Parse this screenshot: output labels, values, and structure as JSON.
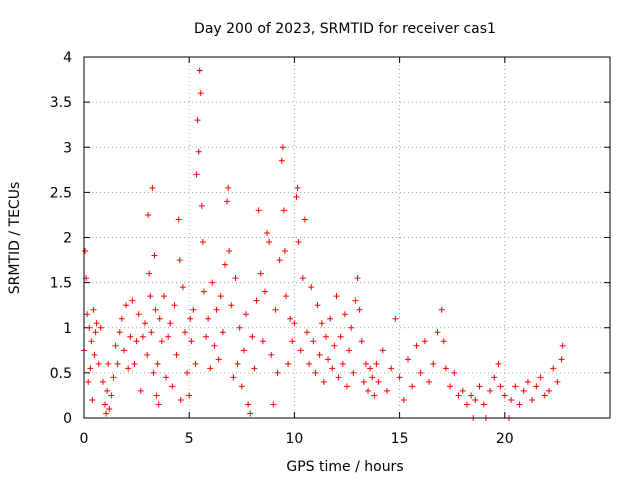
{
  "chart_data": {
    "type": "scatter",
    "title": "Day 200 of 2023, SRMTID for receiver cas1",
    "xlabel": "GPS time / hours",
    "ylabel": "SRMTID / TECUs",
    "xlim": [
      0,
      25
    ],
    "ylim": [
      0,
      4
    ],
    "xticks": [
      0,
      5,
      10,
      15,
      20
    ],
    "xtick_labels": [
      "0",
      "5",
      "10",
      "15",
      "20"
    ],
    "yticks": [
      0,
      0.5,
      1,
      1.5,
      2,
      2.5,
      3,
      3.5,
      4
    ],
    "ytick_labels": [
      "0",
      "0.5",
      "1",
      "1.5",
      "2",
      "2.5",
      "3",
      "3.5",
      "4"
    ],
    "grid": true,
    "marker": "plus",
    "color": "#ff0000",
    "series": [
      {
        "name": "SRMTID",
        "points": [
          [
            0.0,
            0.75
          ],
          [
            0.05,
            1.85
          ],
          [
            0.1,
            1.55
          ],
          [
            0.15,
            1.15
          ],
          [
            0.2,
            0.4
          ],
          [
            0.25,
            1.0
          ],
          [
            0.3,
            0.55
          ],
          [
            0.35,
            0.85
          ],
          [
            0.4,
            0.2
          ],
          [
            0.45,
            1.2
          ],
          [
            0.5,
            0.7
          ],
          [
            0.55,
            0.95
          ],
          [
            0.6,
            1.05
          ],
          [
            0.7,
            0.6
          ],
          [
            0.8,
            1.0
          ],
          [
            0.9,
            0.4
          ],
          [
            1.0,
            0.15
          ],
          [
            1.05,
            0.05
          ],
          [
            1.1,
            0.3
          ],
          [
            1.15,
            0.6
          ],
          [
            1.2,
            0.1
          ],
          [
            1.3,
            0.25
          ],
          [
            1.4,
            0.45
          ],
          [
            1.5,
            0.8
          ],
          [
            1.6,
            0.6
          ],
          [
            1.7,
            0.95
          ],
          [
            1.8,
            1.1
          ],
          [
            1.9,
            0.75
          ],
          [
            2.0,
            1.25
          ],
          [
            2.1,
            0.55
          ],
          [
            2.2,
            0.9
          ],
          [
            2.3,
            1.3
          ],
          [
            2.4,
            0.6
          ],
          [
            2.5,
            0.85
          ],
          [
            2.6,
            1.15
          ],
          [
            2.7,
            0.3
          ],
          [
            2.8,
            0.9
          ],
          [
            2.9,
            1.05
          ],
          [
            3.0,
            0.7
          ],
          [
            3.05,
            2.25
          ],
          [
            3.1,
            1.6
          ],
          [
            3.15,
            1.35
          ],
          [
            3.2,
            0.95
          ],
          [
            3.25,
            2.55
          ],
          [
            3.3,
            0.5
          ],
          [
            3.35,
            1.8
          ],
          [
            3.4,
            1.2
          ],
          [
            3.45,
            0.25
          ],
          [
            3.5,
            0.6
          ],
          [
            3.55,
            0.15
          ],
          [
            3.6,
            1.1
          ],
          [
            3.7,
            0.85
          ],
          [
            3.8,
            1.35
          ],
          [
            3.9,
            0.45
          ],
          [
            4.0,
            0.9
          ],
          [
            4.1,
            1.05
          ],
          [
            4.2,
            0.35
          ],
          [
            4.3,
            1.25
          ],
          [
            4.4,
            0.7
          ],
          [
            4.5,
            2.2
          ],
          [
            4.55,
            1.75
          ],
          [
            4.6,
            0.2
          ],
          [
            4.7,
            1.45
          ],
          [
            4.8,
            0.95
          ],
          [
            4.9,
            0.5
          ],
          [
            5.0,
            0.25
          ],
          [
            5.05,
            1.1
          ],
          [
            5.1,
            0.85
          ],
          [
            5.2,
            1.2
          ],
          [
            5.3,
            0.6
          ],
          [
            5.35,
            2.7
          ],
          [
            5.4,
            3.3
          ],
          [
            5.45,
            2.95
          ],
          [
            5.5,
            3.85
          ],
          [
            5.55,
            3.6
          ],
          [
            5.6,
            2.35
          ],
          [
            5.65,
            1.95
          ],
          [
            5.7,
            1.4
          ],
          [
            5.8,
            0.9
          ],
          [
            5.9,
            1.1
          ],
          [
            6.0,
            0.55
          ],
          [
            6.1,
            1.5
          ],
          [
            6.2,
            0.8
          ],
          [
            6.3,
            1.2
          ],
          [
            6.4,
            0.65
          ],
          [
            6.5,
            1.35
          ],
          [
            6.6,
            0.95
          ],
          [
            6.7,
            1.7
          ],
          [
            6.8,
            2.4
          ],
          [
            6.85,
            2.55
          ],
          [
            6.9,
            1.85
          ],
          [
            7.0,
            1.25
          ],
          [
            7.1,
            0.45
          ],
          [
            7.2,
            1.55
          ],
          [
            7.3,
            0.6
          ],
          [
            7.4,
            1.0
          ],
          [
            7.5,
            0.35
          ],
          [
            7.6,
            0.75
          ],
          [
            7.7,
            1.15
          ],
          [
            7.8,
            0.15
          ],
          [
            7.9,
            0.05
          ],
          [
            8.0,
            0.9
          ],
          [
            8.1,
            0.55
          ],
          [
            8.2,
            1.3
          ],
          [
            8.3,
            2.3
          ],
          [
            8.4,
            1.6
          ],
          [
            8.5,
            0.85
          ],
          [
            8.6,
            1.4
          ],
          [
            8.7,
            2.05
          ],
          [
            8.8,
            1.95
          ],
          [
            8.9,
            0.7
          ],
          [
            9.0,
            0.15
          ],
          [
            9.1,
            1.2
          ],
          [
            9.2,
            0.5
          ],
          [
            9.3,
            1.75
          ],
          [
            9.4,
            2.85
          ],
          [
            9.45,
            3.0
          ],
          [
            9.5,
            2.3
          ],
          [
            9.55,
            1.85
          ],
          [
            9.6,
            1.35
          ],
          [
            9.7,
            0.6
          ],
          [
            9.8,
            1.1
          ],
          [
            9.9,
            0.85
          ],
          [
            10.0,
            1.05
          ],
          [
            10.1,
            2.45
          ],
          [
            10.15,
            2.55
          ],
          [
            10.2,
            1.95
          ],
          [
            10.3,
            0.75
          ],
          [
            10.4,
            1.55
          ],
          [
            10.5,
            2.2
          ],
          [
            10.6,
            0.95
          ],
          [
            10.7,
            0.6
          ],
          [
            10.8,
            1.45
          ],
          [
            10.9,
            0.85
          ],
          [
            11.0,
            0.5
          ],
          [
            11.1,
            1.25
          ],
          [
            11.2,
            0.7
          ],
          [
            11.3,
            1.05
          ],
          [
            11.4,
            0.4
          ],
          [
            11.5,
            0.9
          ],
          [
            11.6,
            0.65
          ],
          [
            11.7,
            1.1
          ],
          [
            11.8,
            0.55
          ],
          [
            11.9,
            0.8
          ],
          [
            12.0,
            1.35
          ],
          [
            12.1,
            0.45
          ],
          [
            12.2,
            0.9
          ],
          [
            12.3,
            0.6
          ],
          [
            12.4,
            1.15
          ],
          [
            12.5,
            0.35
          ],
          [
            12.6,
            0.75
          ],
          [
            12.7,
            1.0
          ],
          [
            12.8,
            0.5
          ],
          [
            12.9,
            1.3
          ],
          [
            13.0,
            1.55
          ],
          [
            13.1,
            1.2
          ],
          [
            13.2,
            0.85
          ],
          [
            13.3,
            0.4
          ],
          [
            13.4,
            0.6
          ],
          [
            13.5,
            0.3
          ],
          [
            13.6,
            0.55
          ],
          [
            13.7,
            0.45
          ],
          [
            13.8,
            0.25
          ],
          [
            13.9,
            0.6
          ],
          [
            14.0,
            0.4
          ],
          [
            14.2,
            0.75
          ],
          [
            14.4,
            0.3
          ],
          [
            14.6,
            0.55
          ],
          [
            14.8,
            1.1
          ],
          [
            15.0,
            0.45
          ],
          [
            15.2,
            0.2
          ],
          [
            15.4,
            0.65
          ],
          [
            15.6,
            0.35
          ],
          [
            15.8,
            0.8
          ],
          [
            16.0,
            0.5
          ],
          [
            16.2,
            0.85
          ],
          [
            16.4,
            0.4
          ],
          [
            16.6,
            0.6
          ],
          [
            16.8,
            0.95
          ],
          [
            17.0,
            1.2
          ],
          [
            17.1,
            0.85
          ],
          [
            17.2,
            0.55
          ],
          [
            17.4,
            0.35
          ],
          [
            17.6,
            0.5
          ],
          [
            17.8,
            0.25
          ],
          [
            18.0,
            0.3
          ],
          [
            18.2,
            0.15
          ],
          [
            18.4,
            0.25
          ],
          [
            18.5,
            0.0
          ],
          [
            18.6,
            0.2
          ],
          [
            18.8,
            0.35
          ],
          [
            19.0,
            0.15
          ],
          [
            19.1,
            0.0
          ],
          [
            19.3,
            0.3
          ],
          [
            19.5,
            0.45
          ],
          [
            19.7,
            0.6
          ],
          [
            19.8,
            0.35
          ],
          [
            20.0,
            0.25
          ],
          [
            20.2,
            0.0
          ],
          [
            20.3,
            0.2
          ],
          [
            20.5,
            0.35
          ],
          [
            20.7,
            0.15
          ],
          [
            20.9,
            0.3
          ],
          [
            21.1,
            0.4
          ],
          [
            21.3,
            0.2
          ],
          [
            21.5,
            0.35
          ],
          [
            21.7,
            0.45
          ],
          [
            21.9,
            0.25
          ],
          [
            22.1,
            0.3
          ],
          [
            22.3,
            0.55
          ],
          [
            22.5,
            0.4
          ],
          [
            22.7,
            0.65
          ],
          [
            22.75,
            0.8
          ]
        ]
      }
    ]
  }
}
